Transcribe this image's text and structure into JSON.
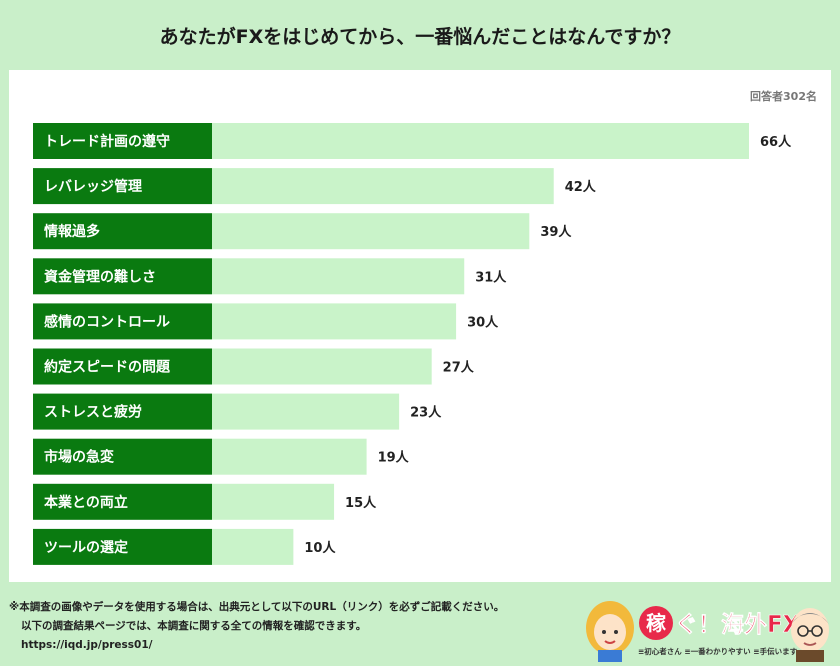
{
  "title": "あなたがFXをはじめてから、一番悩んだことはなんですか？",
  "respondents": "回答者302名",
  "footnote": {
    "line1": "※本調査の画像やデータを使用する場合は、出典元として以下のURL（リンク）を必ずご記載ください。",
    "line2": "以下の調査結果ページでは、本調査に関する全ての情報を確認できます。",
    "line3": "https://iqd.jp/press01/"
  },
  "logo": {
    "kanji": "稼",
    "text": "ぐ！海外FX",
    "tagline": "≡初心者さん ≡一番わかりやすい ≡手伝います"
  },
  "colors": {
    "background": "#c9efc9",
    "label_bg": "#0a7a10",
    "bar": "#c9f3c9",
    "logo_red": "#e8294a"
  },
  "chart_data": {
    "type": "bar",
    "orientation": "horizontal",
    "categories": [
      "トレード計画の遵守",
      "レバレッジ管理",
      "情報過多",
      "資金管理の難しさ",
      "感情のコントロール",
      "約定スピードの問題",
      "ストレスと疲労",
      "市場の急変",
      "本業との両立",
      "ツールの選定"
    ],
    "values": [
      66,
      42,
      39,
      31,
      30,
      27,
      23,
      19,
      15,
      10
    ],
    "value_labels": [
      "66人",
      "42人",
      "39人",
      "31人",
      "30人",
      "27人",
      "23人",
      "19人",
      "15人",
      "10人"
    ],
    "xlim": [
      0,
      66
    ]
  }
}
